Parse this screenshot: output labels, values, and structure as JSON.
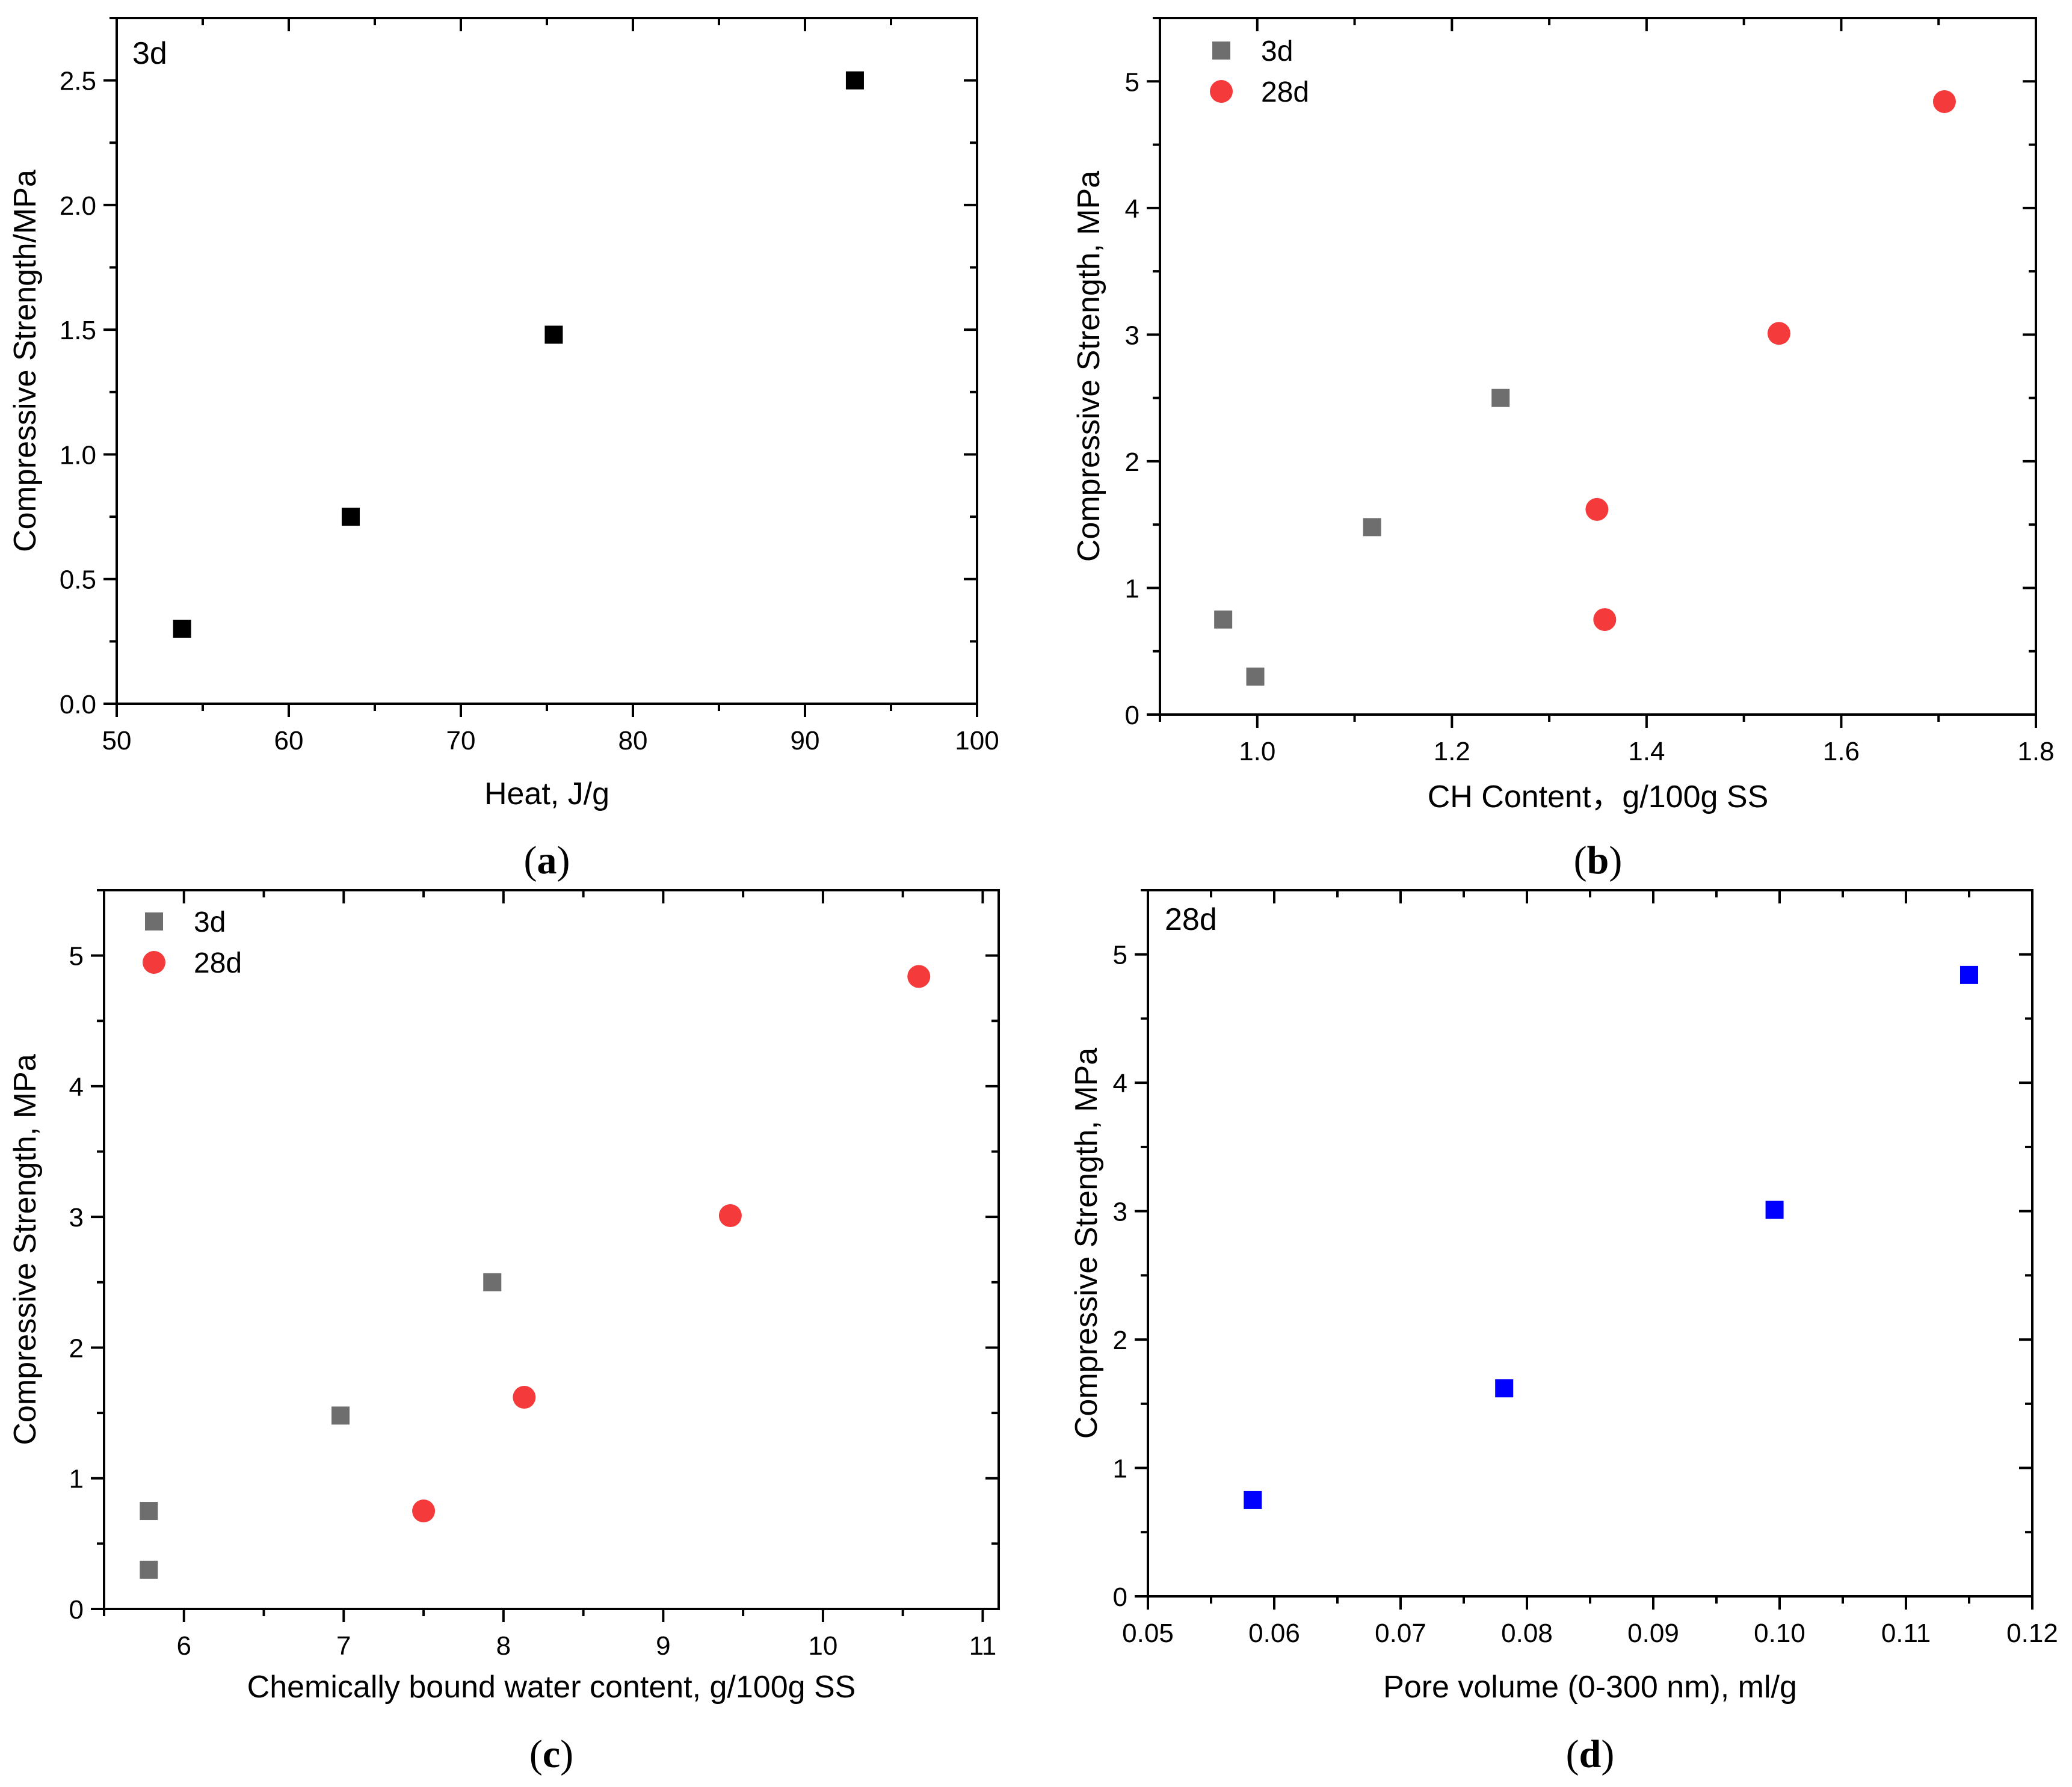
{
  "chart_data": [
    {
      "panel": "a",
      "type": "scatter",
      "caption_letter": "a",
      "annotation": "3d",
      "xlabel": "Heat, J/g",
      "ylabel": "Compressive Strength/MPa",
      "xlim": [
        50,
        100
      ],
      "ylim": [
        0,
        2.75
      ],
      "xticks": [
        50,
        60,
        70,
        80,
        90,
        100
      ],
      "yticks": [
        0.0,
        0.5,
        1.0,
        1.5,
        2.0,
        2.5
      ],
      "x_minor_step": 5,
      "y_minor_step": 0.25,
      "xtick_decimals": 0,
      "ytick_decimals": 1,
      "series": [
        {
          "name": "3d",
          "marker": "square",
          "color": "#000000",
          "x": [
            53.8,
            63.6,
            75.4,
            92.9
          ],
          "y": [
            0.3,
            0.75,
            1.48,
            2.5
          ]
        }
      ]
    },
    {
      "panel": "b",
      "type": "scatter",
      "caption_letter": "b",
      "xlabel": "CH Content，g/100g SS",
      "ylabel": "Compressive Strength, MPa",
      "xlim": [
        0.9,
        1.8
      ],
      "ylim": [
        0,
        5.5
      ],
      "xticks": [
        1.0,
        1.2,
        1.4,
        1.6,
        1.8
      ],
      "yticks": [
        0,
        1,
        2,
        3,
        4,
        5
      ],
      "x_minor_step": 0.1,
      "y_minor_step": 0.5,
      "xtick_decimals": 1,
      "ytick_decimals": 0,
      "legend_position": "top-left",
      "series": [
        {
          "name": "3d",
          "marker": "square",
          "color": "#6e6e6e",
          "x": [
            0.965,
            0.998,
            1.118,
            1.25
          ],
          "y": [
            0.75,
            0.3,
            1.48,
            2.5
          ]
        },
        {
          "name": "28d",
          "marker": "circle",
          "color": "#f43a3a",
          "x": [
            1.357,
            1.349,
            1.536,
            1.706
          ],
          "y": [
            0.75,
            1.62,
            3.01,
            4.84
          ]
        }
      ]
    },
    {
      "panel": "c",
      "type": "scatter",
      "caption_letter": "c",
      "xlabel": "Chemically bound water content, g/100g SS",
      "ylabel": "Compressive Strength, MPa",
      "xlim": [
        5.5,
        11.1
      ],
      "ylim": [
        0,
        5.5
      ],
      "xticks": [
        6,
        7,
        8,
        9,
        10,
        11
      ],
      "yticks": [
        0,
        1,
        2,
        3,
        4,
        5
      ],
      "x_minor_step": 0.5,
      "y_minor_step": 0.5,
      "xtick_decimals": 0,
      "ytick_decimals": 0,
      "legend_position": "top-left",
      "series": [
        {
          "name": "3d",
          "marker": "square",
          "color": "#6e6e6e",
          "x": [
            5.78,
            5.78,
            6.98,
            7.93
          ],
          "y": [
            0.75,
            0.3,
            1.48,
            2.5
          ]
        },
        {
          "name": "28d",
          "marker": "circle",
          "color": "#f43a3a",
          "x": [
            7.5,
            8.13,
            9.42,
            10.6
          ],
          "y": [
            0.75,
            1.62,
            3.01,
            4.84
          ]
        }
      ]
    },
    {
      "panel": "d",
      "type": "scatter",
      "caption_letter": "d",
      "annotation": "28d",
      "xlabel": "Pore volume (0-300 nm), ml/g",
      "ylabel": "Compressive Strength, MPa",
      "xlim": [
        0.05,
        0.12
      ],
      "ylim": [
        0,
        5.5
      ],
      "xticks": [
        0.05,
        0.06,
        0.07,
        0.08,
        0.09,
        0.1,
        0.11,
        0.12
      ],
      "yticks": [
        0,
        1,
        2,
        3,
        4,
        5
      ],
      "x_minor_step": 0.005,
      "y_minor_step": 0.5,
      "xtick_decimals": 2,
      "ytick_decimals": 0,
      "series": [
        {
          "name": "28d",
          "marker": "square",
          "color": "#0000ff",
          "x": [
            0.0583,
            0.0782,
            0.0996,
            0.115
          ],
          "y": [
            0.75,
            1.62,
            3.01,
            4.84
          ]
        }
      ]
    }
  ]
}
